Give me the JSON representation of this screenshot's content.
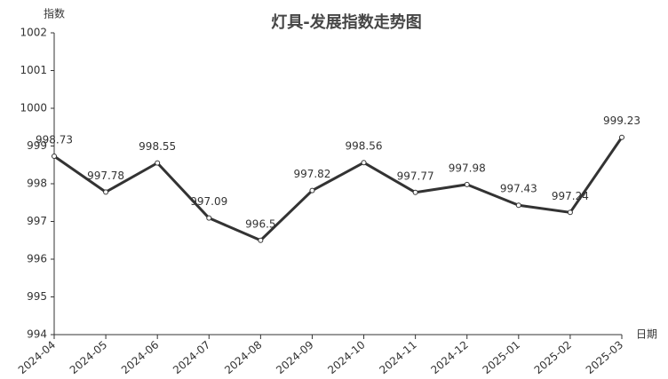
{
  "chart_data": {
    "type": "line",
    "title": "灯具-发展指数走势图",
    "y_label": "指数",
    "x_label": "日期",
    "categories": [
      "2024-04",
      "2024-05",
      "2024-06",
      "2024-07",
      "2024-08",
      "2024-09",
      "2024-10",
      "2024-11",
      "2024-12",
      "2025-01",
      "2025-02",
      "2025-03"
    ],
    "values": [
      998.73,
      997.78,
      998.55,
      997.09,
      996.5,
      997.82,
      998.56,
      997.77,
      997.98,
      997.43,
      997.24,
      999.23
    ],
    "color": "#333333",
    "ylim": [
      994,
      1002
    ],
    "yticks": [
      994,
      995,
      996,
      997,
      998,
      999,
      1000,
      1001,
      1002
    ],
    "grid": false
  }
}
